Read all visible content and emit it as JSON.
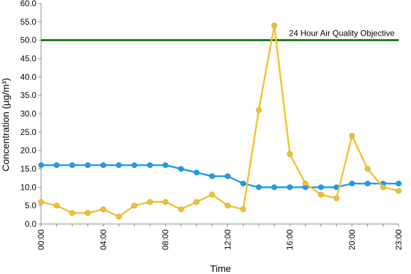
{
  "chart_data": {
    "type": "line",
    "xlabel": "Time",
    "ylabel": "Concentration (µg/m³)",
    "ylim": [
      0,
      60
    ],
    "y_ticks": [
      "0.0",
      "5.0",
      "10.0",
      "15.0",
      "20.0",
      "25.0",
      "30.0",
      "35.0",
      "40.0",
      "45.0",
      "50.0",
      "55.0",
      "60.0"
    ],
    "x": [
      0,
      1,
      2,
      3,
      4,
      5,
      6,
      7,
      8,
      9,
      10,
      11,
      12,
      13,
      14,
      15,
      16,
      17,
      18,
      19,
      20,
      21,
      22,
      23
    ],
    "x_ticks": [
      {
        "x": 0,
        "label": "00:00"
      },
      {
        "x": 4,
        "label": "04:00"
      },
      {
        "x": 8,
        "label": "08:00"
      },
      {
        "x": 12,
        "label": "12:00"
      },
      {
        "x": 16,
        "label": "16:00"
      },
      {
        "x": 20,
        "label": "20:00"
      },
      {
        "x": 23,
        "label": "23:00"
      }
    ],
    "grid": false,
    "series": [
      {
        "color": "#1E9BF0",
        "values": [
          16,
          16,
          16,
          16,
          16,
          16,
          16,
          16,
          16,
          15,
          14,
          13,
          13,
          11,
          10,
          10,
          10,
          10,
          10,
          10,
          11,
          11,
          11,
          11
        ]
      },
      {
        "color": "#F2C12E",
        "values": [
          6,
          5,
          3,
          3,
          4,
          2,
          5,
          6,
          6,
          4,
          6,
          8,
          5,
          4,
          31,
          54,
          19,
          11,
          8,
          7,
          24,
          15,
          10,
          9
        ]
      }
    ],
    "reference_lines": [
      {
        "y": 50,
        "label": "24 Hour Air Quality Objective",
        "color": "#127A12"
      }
    ]
  }
}
